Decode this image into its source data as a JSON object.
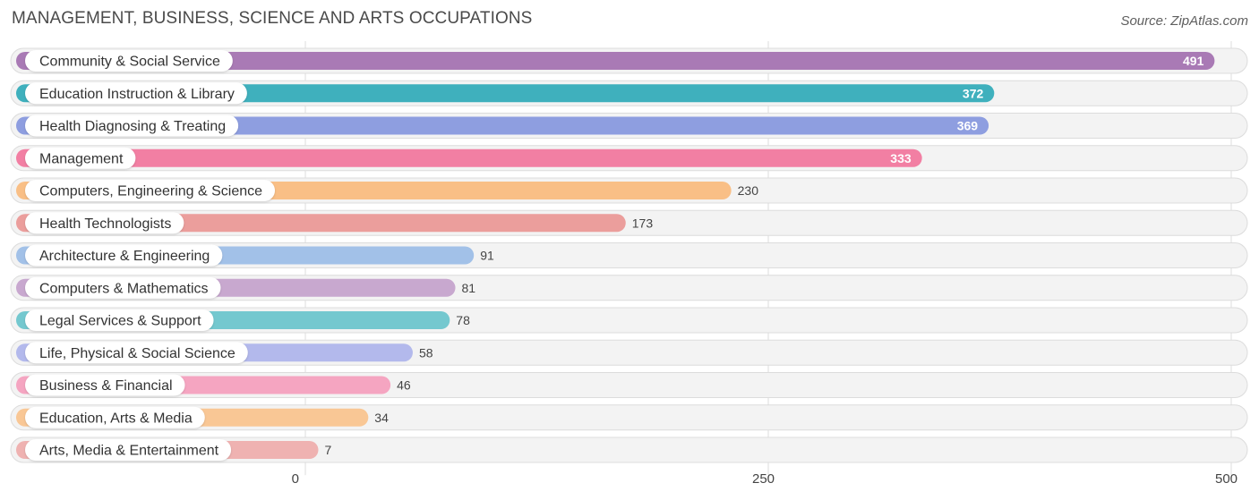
{
  "title": "MANAGEMENT, BUSINESS, SCIENCE AND ARTS OCCUPATIONS",
  "source": "Source: ZipAtlas.com",
  "chart_data": {
    "type": "bar",
    "orientation": "horizontal",
    "categories": [
      "Community & Social Service",
      "Education Instruction & Library",
      "Health Diagnosing & Treating",
      "Management",
      "Computers, Engineering & Science",
      "Health Technologists",
      "Architecture & Engineering",
      "Computers & Mathematics",
      "Legal Services & Support",
      "Life, Physical & Social Science",
      "Business & Financial",
      "Education, Arts & Media",
      "Arts, Media & Entertainment"
    ],
    "values": [
      491,
      372,
      369,
      333,
      230,
      173,
      91,
      81,
      78,
      58,
      46,
      34,
      7
    ],
    "colors": [
      "#a97ab5",
      "#3fb0bd",
      "#8e9ee0",
      "#f27fa3",
      "#f9bf86",
      "#eb9e9c",
      "#a2c1e8",
      "#c8a8cf",
      "#74c8cf",
      "#b3b9ec",
      "#f5a5c1",
      "#f9c795",
      "#efb2b1"
    ],
    "xticks": [
      0,
      250,
      500
    ],
    "xlim": [
      0,
      500
    ],
    "grid": true
  }
}
